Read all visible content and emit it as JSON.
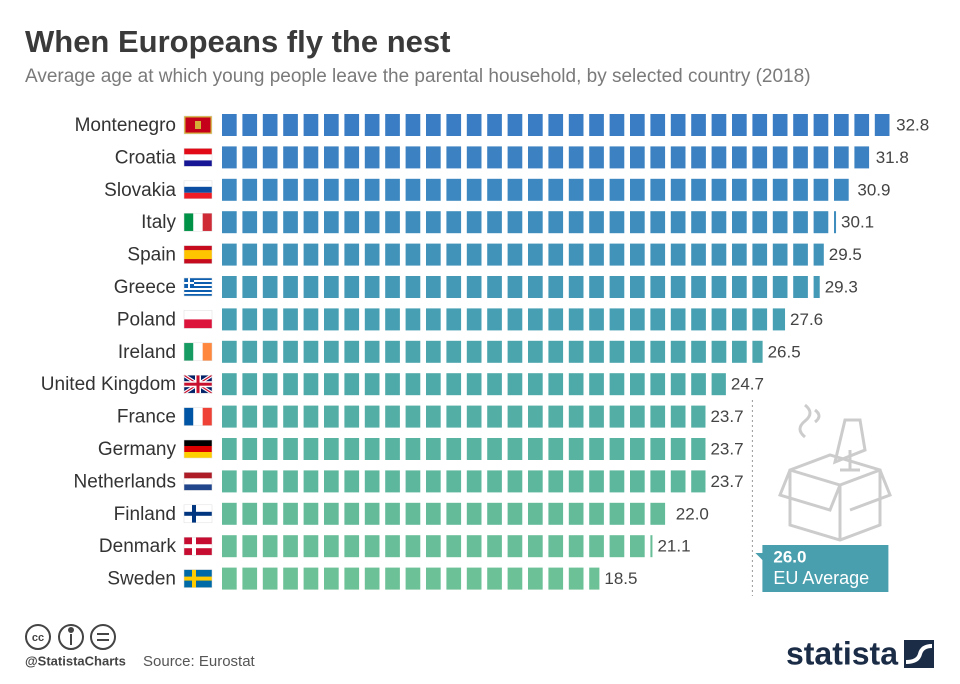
{
  "chart_data": {
    "type": "unit-bar",
    "title": "When Europeans fly the nest",
    "subtitle": "Average age at which young people leave the parental household, by selected country (2018)",
    "categories": [
      "Montenegro",
      "Croatia",
      "Slovakia",
      "Italy",
      "Spain",
      "Greece",
      "Poland",
      "Ireland",
      "United Kingdom",
      "France",
      "Germany",
      "Netherlands",
      "Finland",
      "Denmark",
      "Sweden"
    ],
    "values": [
      32.8,
      31.8,
      30.9,
      30.1,
      29.5,
      29.3,
      27.6,
      26.5,
      24.7,
      23.7,
      23.7,
      23.7,
      22.0,
      21.1,
      18.5
    ],
    "value_labels": [
      "32.8",
      "31.8",
      "30.9",
      "30.1",
      "29.5",
      "29.3",
      "27.6",
      "26.5",
      "24.7",
      "23.7",
      "23.7",
      "23.7",
      "22.0",
      "21.1",
      "18.5"
    ],
    "colors": [
      "#3b7dc4",
      "#3c82c2",
      "#3d88c0",
      "#3f8dbd",
      "#4193ba",
      "#4399b6",
      "#469fb2",
      "#4aa5ad",
      "#4ea9a9",
      "#53aea5",
      "#58b3a1",
      "#5db79d",
      "#63bb9a",
      "#68be98",
      "#6dc197"
    ],
    "xlim": [
      0,
      35
    ],
    "eu_average": {
      "value": 26.0,
      "label": "26.0",
      "text": "EU Average"
    },
    "footer": {
      "handle": "@StatistaCharts",
      "source": "Source: Eurostat",
      "logo": "statista"
    }
  }
}
